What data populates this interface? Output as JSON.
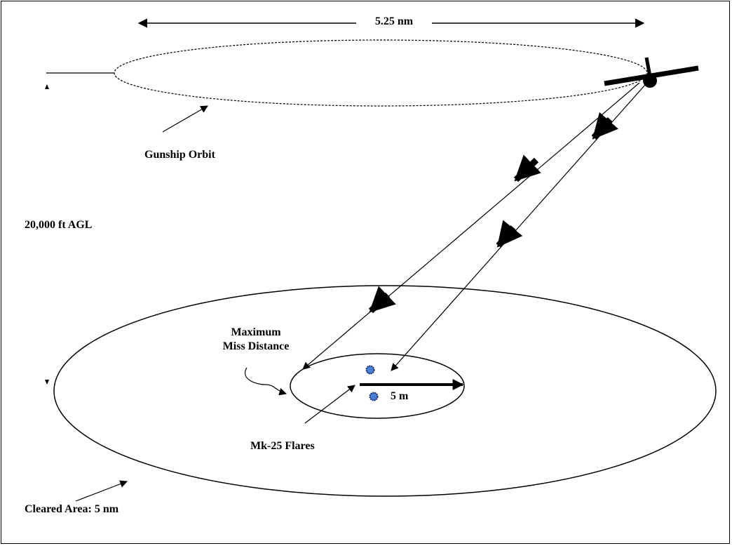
{
  "labels": {
    "orbit_width": "5.25 nm",
    "gunship_orbit": "Gunship Orbit",
    "altitude": "20,000 ft AGL",
    "max_miss_line1": "Maximum",
    "max_miss_line2": "Miss Distance",
    "inner_radius": "5 m",
    "flares": "Mk-25 Flares",
    "cleared_area": "Cleared Area: 5 nm"
  },
  "colors": {
    "line": "#000000",
    "flare_fill": "#4a7fd6",
    "flare_stroke": "#1a2f6b"
  }
}
